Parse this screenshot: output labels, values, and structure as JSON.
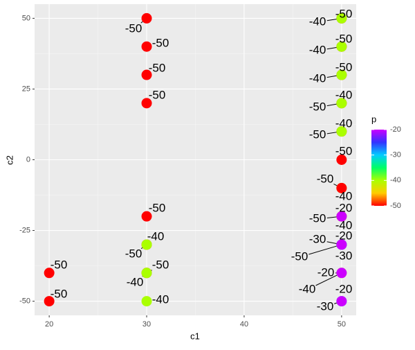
{
  "chart_data": {
    "type": "scatter",
    "x_label": "c1",
    "y_label": "c2",
    "legend_title": "p",
    "x": [
      20,
      20,
      30,
      30,
      30,
      30,
      30,
      30,
      30,
      30,
      30,
      30,
      50,
      50,
      50,
      50,
      50,
      50,
      50,
      50,
      50,
      50,
      50,
      50,
      50,
      50,
      50,
      50,
      50,
      50,
      50,
      50,
      50,
      50,
      50,
      50
    ],
    "y": [
      -40,
      -50,
      50,
      40,
      30,
      20,
      -20,
      -30,
      -30,
      -40,
      -40,
      -50,
      50,
      50,
      40,
      40,
      30,
      30,
      20,
      20,
      10,
      10,
      0,
      -10,
      -10,
      -20,
      -20,
      -20,
      -30,
      -30,
      -30,
      -30,
      -40,
      -40,
      -50,
      -50
    ],
    "p": [
      -50,
      -50,
      -50,
      -50,
      -50,
      -50,
      -50,
      -50,
      -40,
      -50,
      -40,
      -40,
      -50,
      -40,
      -50,
      -40,
      -50,
      -40,
      -50,
      -40,
      -50,
      -40,
      -50,
      -40,
      -50,
      -50,
      -40,
      -20,
      -50,
      -30,
      -30,
      -20,
      -40,
      -20,
      -30,
      -20
    ],
    "xlim": [
      18.5,
      51.5
    ],
    "ylim": [
      -55,
      55
    ],
    "xticks": [
      20,
      30,
      40,
      50
    ],
    "yticks": [
      -50,
      -25,
      0,
      25,
      50
    ],
    "plim": [
      -50,
      -20
    ],
    "pticks": [
      -20,
      -30,
      -40,
      -50
    ],
    "palette": [
      "#ff0000",
      "#ffcc00",
      "#aaff00",
      "#00ff66",
      "#00ccff",
      "#3333ff",
      "#cc00ff"
    ],
    "grid": true
  }
}
